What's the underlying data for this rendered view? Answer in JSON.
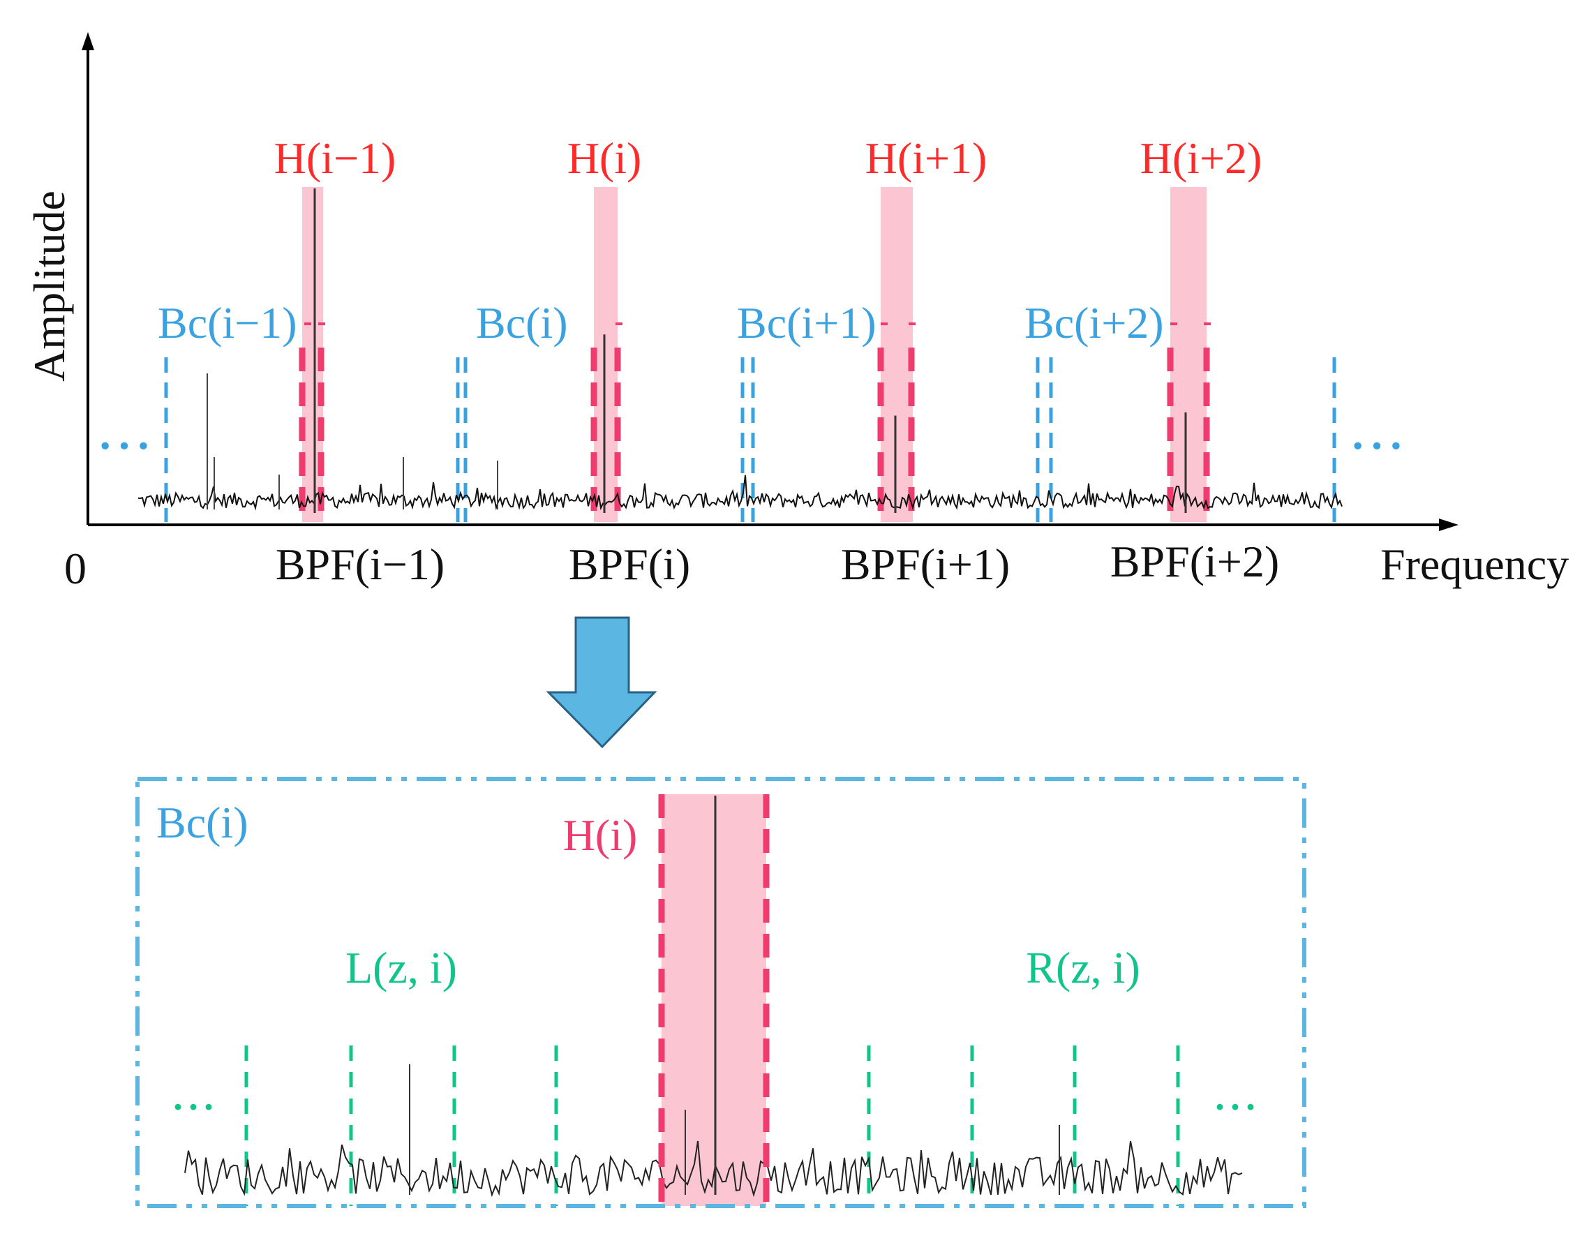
{
  "top_panel": {
    "y_axis_label": "Amplitude",
    "x_axis_label": "Frequency",
    "origin_label": "0",
    "ellipsis_left": "···",
    "ellipsis_right": "···",
    "harmonics": [
      {
        "h_label": "H(i−1)",
        "bc_label": "Bc(i−1)",
        "bpf_label": "BPF(i−1)",
        "peak_level": 1.0
      },
      {
        "h_label": "H(i)",
        "bc_label": "Bc(i)",
        "bpf_label": "BPF(i)",
        "peak_level": 0.55
      },
      {
        "h_label": "H(i+1)",
        "bc_label": "Bc(i+1)",
        "bpf_label": "BPF(i+1)",
        "peak_level": 0.3
      },
      {
        "h_label": "H(i+2)",
        "bc_label": "Bc(i+2)",
        "bpf_label": "BPF(i+2)",
        "peak_level": 0.31
      }
    ]
  },
  "bottom_panel": {
    "bc_label": "Bc(i)",
    "h_label": "H(i)",
    "left_label": "L(z, i)",
    "right_label": "R(z, i)",
    "ellipsis_left": "···",
    "ellipsis_right": "···"
  },
  "colors": {
    "harmonic_red": "#ff2a2a",
    "band_fill": "#fbc6d2",
    "band_dash": "#ef3b6d",
    "bc_blue": "#3aa2e0",
    "sideband_green": "#10c48a",
    "arrow_fill": "#5bb6e2",
    "arrow_stroke": "#2a5f86"
  }
}
